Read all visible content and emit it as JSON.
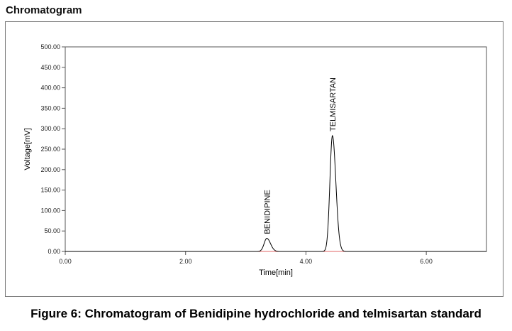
{
  "header": {
    "title": "Chromatogram"
  },
  "figure": {
    "caption": "Figure 6: Chromatogram of Benidipine hydrochloride and telmisartan standard"
  },
  "chart_data": {
    "type": "line",
    "title": "",
    "xlabel": "Time[min]",
    "ylabel": "Voltage[mV]",
    "xlim": [
      0,
      7.0
    ],
    "ylim": [
      0,
      500
    ],
    "x_ticks": [
      0,
      2,
      4,
      6
    ],
    "x_tick_labels": [
      "0.00",
      "2.00",
      "4.00",
      "6.00"
    ],
    "y_ticks": [
      0,
      50,
      100,
      150,
      200,
      250,
      300,
      350,
      400,
      450,
      500
    ],
    "y_tick_labels": [
      "0.00",
      "50.00",
      "100.00",
      "150.00",
      "200.00",
      "250.00",
      "300.00",
      "350.00",
      "400.00",
      "450.00",
      "500.00"
    ],
    "grid": false,
    "colors": {
      "signal": "#000000",
      "baseline": "#e06666"
    },
    "peaks": [
      {
        "label": "BENIDIPINE",
        "retention_time": 3.35,
        "height_mV": 32,
        "width_min": 0.045
      },
      {
        "label": "TELMISARTAN",
        "retention_time": 4.44,
        "height_mV": 283,
        "width_min": 0.042
      }
    ]
  }
}
